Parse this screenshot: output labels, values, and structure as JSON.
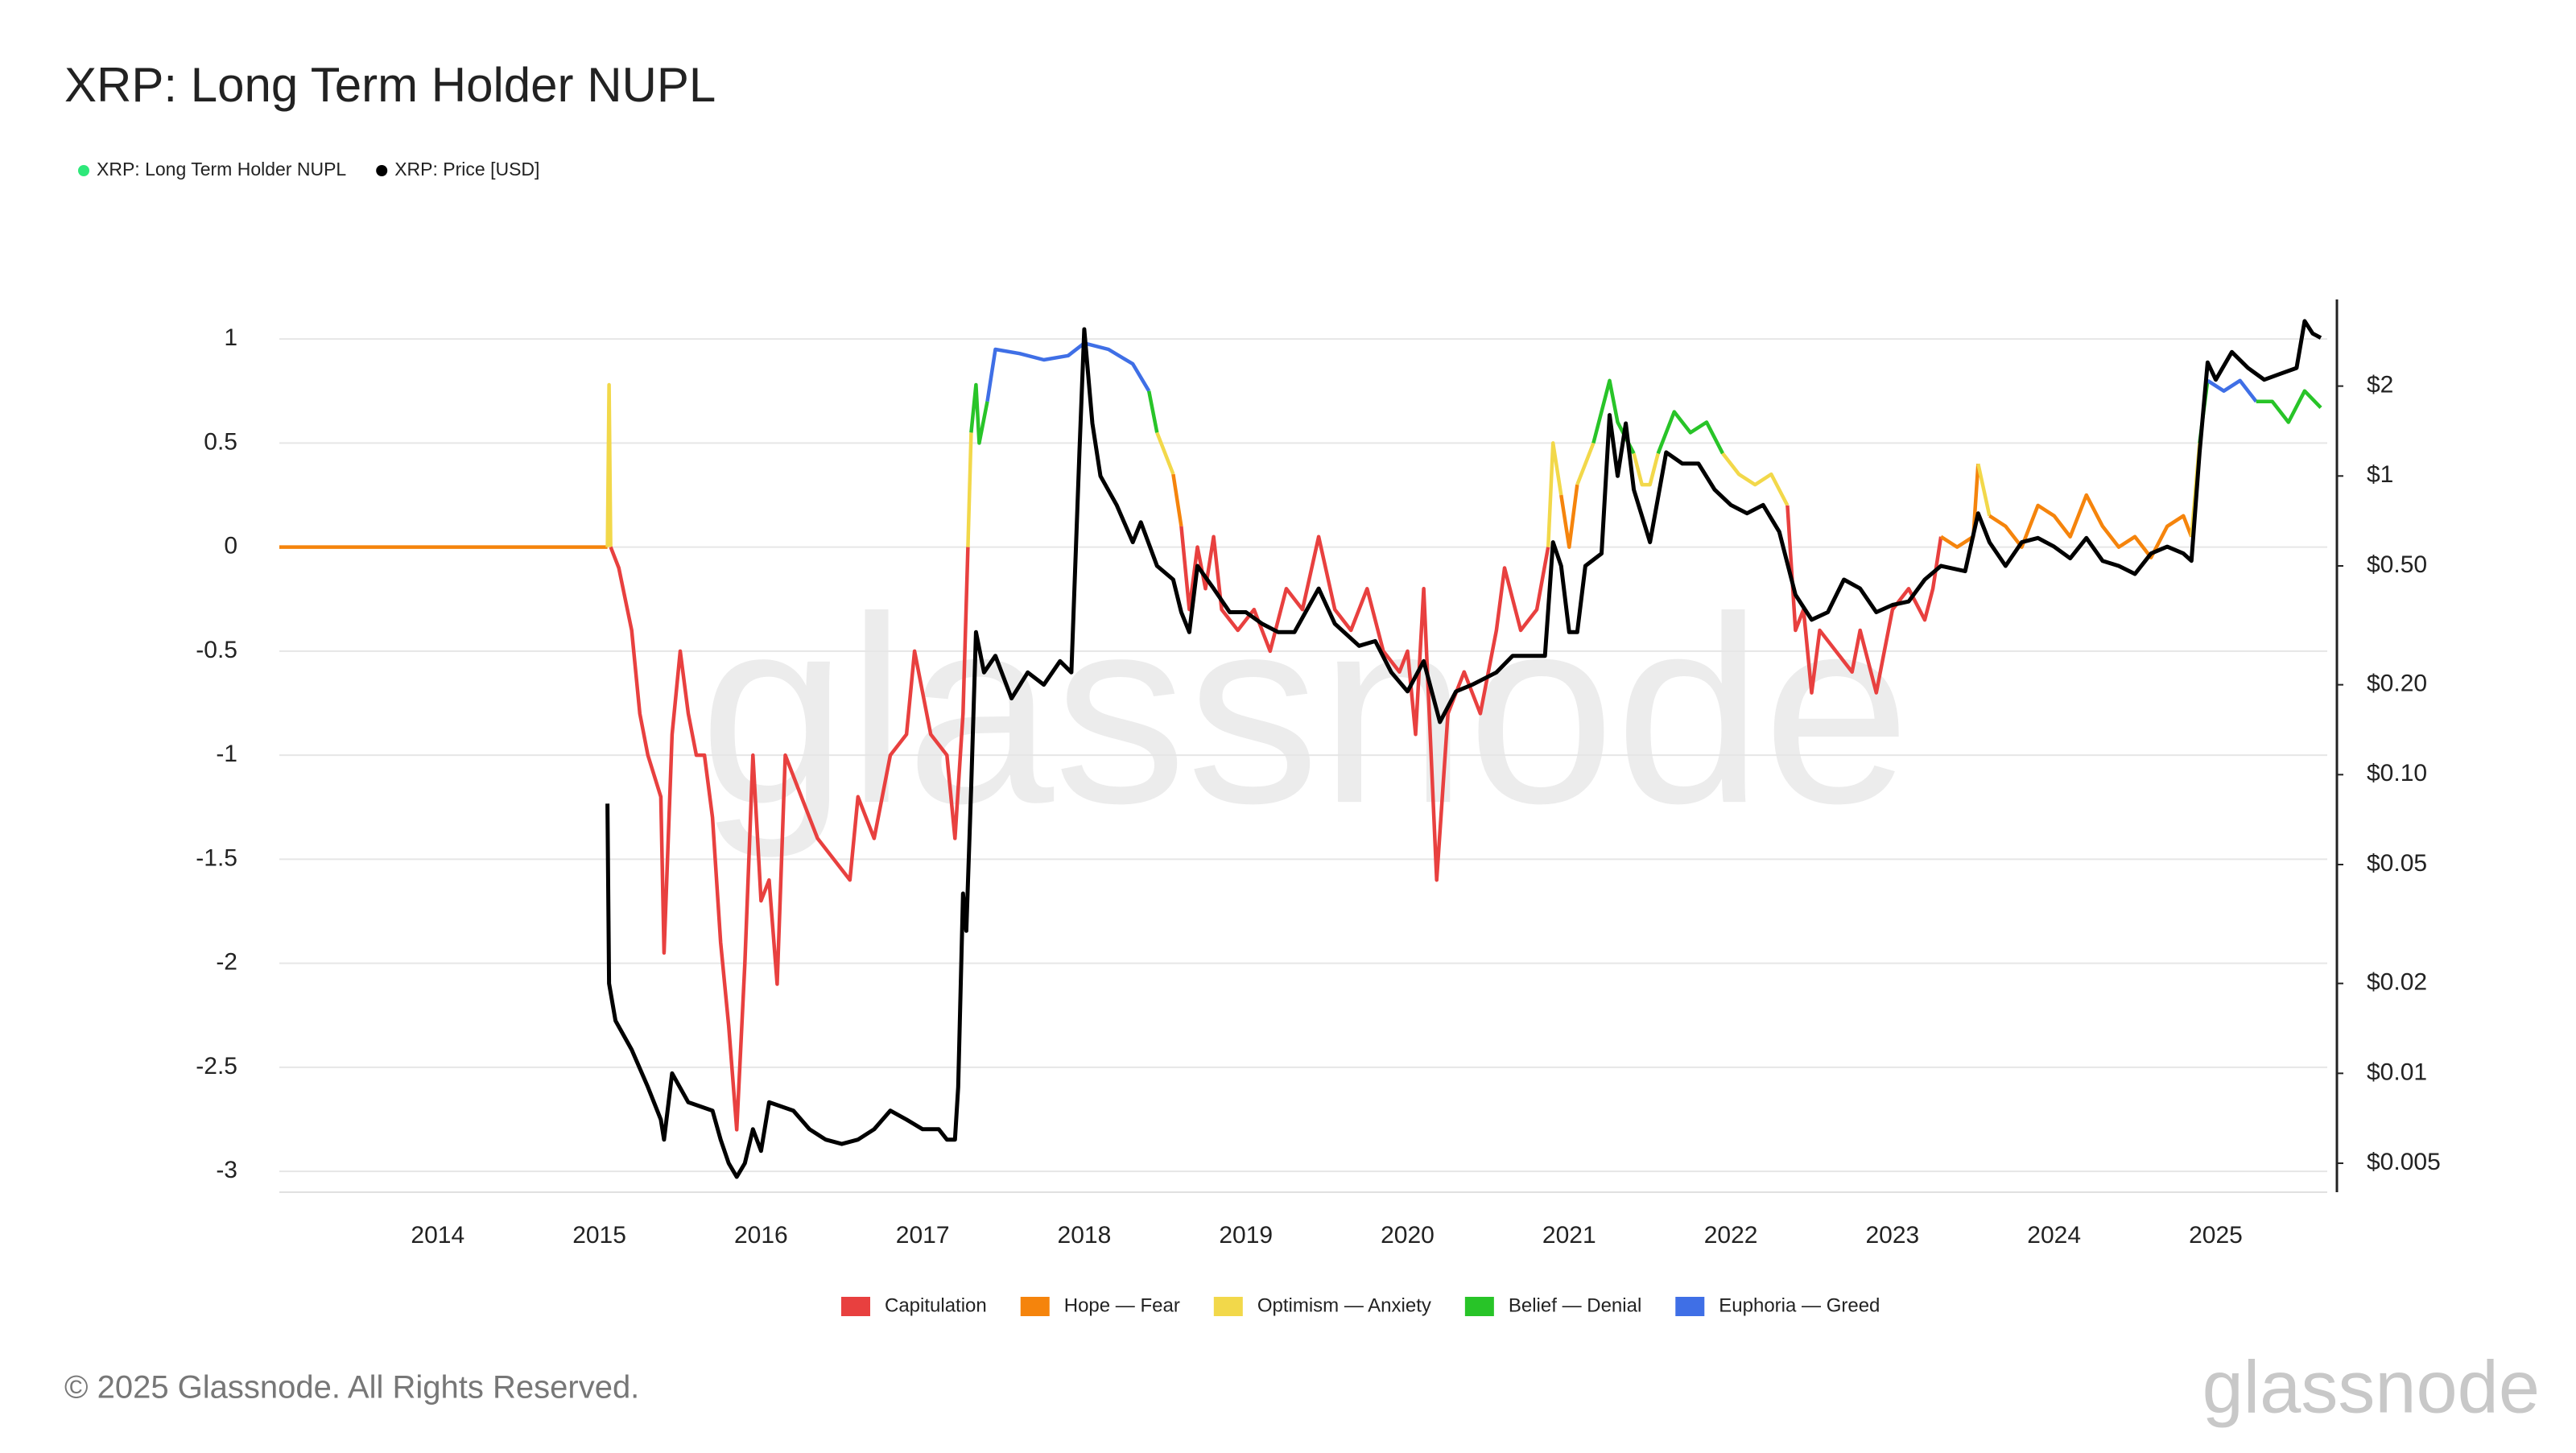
{
  "chart_data": {
    "type": "line",
    "title": "XRP: Long Term Holder NUPL",
    "watermark": "glassnode",
    "footer": "© 2025 Glassnode. All Rights Reserved.",
    "xlim": [
      2013.02,
      2025.69
    ],
    "xticks": [
      2014,
      2015,
      2016,
      2017,
      2018,
      2019,
      2020,
      2021,
      2022,
      2023,
      2024,
      2025
    ],
    "ylim": [
      -3.1,
      1.19
    ],
    "yticks": [
      1,
      0.5,
      0,
      -0.5,
      -1,
      -1.5,
      -2,
      -2.5,
      -3
    ],
    "y2lim": [
      0.004,
      3.9
    ],
    "y2scale": "log",
    "y2ticks": [
      {
        "value": 2,
        "label": "$2"
      },
      {
        "value": 1,
        "label": "$1"
      },
      {
        "value": 0.5,
        "label": "$0.50"
      },
      {
        "value": 0.2,
        "label": "$0.20"
      },
      {
        "value": 0.1,
        "label": "$0.10"
      },
      {
        "value": 0.05,
        "label": "$0.05"
      },
      {
        "value": 0.02,
        "label": "$0.02"
      },
      {
        "value": 0.01,
        "label": "$0.01"
      },
      {
        "value": 0.005,
        "label": "$0.005"
      }
    ],
    "grid": true,
    "zone_thresholds": [
      0,
      0.25,
      0.5,
      0.75
    ],
    "zones": [
      {
        "name": "Capitulation",
        "color": "#e8403f"
      },
      {
        "name": "Hope — Fear",
        "color": "#f5840c"
      },
      {
        "name": "Optimism — Anxiety",
        "color": "#f2d84a"
      },
      {
        "name": "Belief — Denial",
        "color": "#28c428"
      },
      {
        "name": "Euphoria — Greed",
        "color": "#3f6fe6"
      }
    ],
    "series": [
      {
        "name": "XRP: Long Term Holder NUPL",
        "color": "#2ee87a",
        "x": [
          2013.02,
          2015.05,
          2015.06,
          2015.07,
          2015.12,
          2015.2,
          2015.25,
          2015.3,
          2015.38,
          2015.4,
          2015.45,
          2015.5,
          2015.55,
          2015.6,
          2015.65,
          2015.7,
          2015.75,
          2015.8,
          2015.85,
          2015.9,
          2015.95,
          2016.0,
          2016.05,
          2016.1,
          2016.15,
          2016.25,
          2016.35,
          2016.45,
          2016.55,
          2016.6,
          2016.7,
          2016.8,
          2016.9,
          2016.95,
          2017.05,
          2017.15,
          2017.2,
          2017.25,
          2017.28,
          2017.3,
          2017.33,
          2017.35,
          2017.4,
          2017.45,
          2017.6,
          2017.75,
          2017.9,
          2018.0,
          2018.15,
          2018.3,
          2018.4,
          2018.45,
          2018.55,
          2018.6,
          2018.65,
          2018.7,
          2018.75,
          2018.8,
          2018.85,
          2018.95,
          2019.05,
          2019.15,
          2019.25,
          2019.35,
          2019.45,
          2019.55,
          2019.65,
          2019.75,
          2019.85,
          2019.95,
          2020.0,
          2020.05,
          2020.1,
          2020.18,
          2020.25,
          2020.35,
          2020.45,
          2020.55,
          2020.6,
          2020.7,
          2020.8,
          2020.87,
          2020.9,
          2020.95,
          2021.0,
          2021.05,
          2021.1,
          2021.15,
          2021.25,
          2021.3,
          2021.4,
          2021.45,
          2021.5,
          2021.55,
          2021.65,
          2021.75,
          2021.85,
          2021.95,
          2022.05,
          2022.15,
          2022.25,
          2022.35,
          2022.4,
          2022.45,
          2022.5,
          2022.55,
          2022.65,
          2022.75,
          2022.8,
          2022.9,
          2022.95,
          2023.0,
          2023.1,
          2023.2,
          2023.25,
          2023.3,
          2023.4,
          2023.5,
          2023.53,
          2023.6,
          2023.7,
          2023.8,
          2023.9,
          2024.0,
          2024.1,
          2024.2,
          2024.3,
          2024.4,
          2024.5,
          2024.6,
          2024.7,
          2024.8,
          2024.85,
          2024.9,
          2024.95,
          2025.05,
          2025.15,
          2025.25,
          2025.35,
          2025.45,
          2025.55,
          2025.65
        ],
        "values": [
          0,
          0,
          0.78,
          0.0,
          -0.1,
          -0.4,
          -0.8,
          -1.0,
          -1.2,
          -1.95,
          -0.9,
          -0.5,
          -0.8,
          -1.0,
          -1.0,
          -1.3,
          -1.9,
          -2.3,
          -2.8,
          -2.0,
          -1.0,
          -1.7,
          -1.6,
          -2.1,
          -1.0,
          -1.2,
          -1.4,
          -1.5,
          -1.6,
          -1.2,
          -1.4,
          -1.0,
          -0.9,
          -0.5,
          -0.9,
          -1.0,
          -1.4,
          -0.8,
          0.0,
          0.55,
          0.78,
          0.5,
          0.7,
          0.95,
          0.93,
          0.9,
          0.92,
          0.98,
          0.95,
          0.88,
          0.75,
          0.55,
          0.35,
          0.1,
          -0.3,
          0.0,
          -0.2,
          0.05,
          -0.3,
          -0.4,
          -0.3,
          -0.5,
          -0.2,
          -0.3,
          0.05,
          -0.3,
          -0.4,
          -0.2,
          -0.5,
          -0.6,
          -0.5,
          -0.9,
          -0.2,
          -1.6,
          -0.8,
          -0.6,
          -0.8,
          -0.4,
          -0.1,
          -0.4,
          -0.3,
          0.0,
          0.5,
          0.25,
          0.0,
          0.3,
          0.4,
          0.5,
          0.8,
          0.6,
          0.45,
          0.3,
          0.3,
          0.45,
          0.65,
          0.55,
          0.6,
          0.45,
          0.35,
          0.3,
          0.35,
          0.2,
          -0.4,
          -0.3,
          -0.7,
          -0.4,
          -0.5,
          -0.6,
          -0.4,
          -0.7,
          -0.5,
          -0.3,
          -0.2,
          -0.35,
          -0.2,
          0.05,
          0.0,
          0.05,
          0.4,
          0.15,
          0.1,
          0.0,
          0.2,
          0.15,
          0.05,
          0.25,
          0.1,
          0.0,
          0.05,
          -0.05,
          0.1,
          0.15,
          0.05,
          0.5,
          0.8,
          0.75,
          0.8,
          0.7,
          0.7,
          0.6,
          0.75,
          0.67
        ]
      },
      {
        "name": "XRP: Price [USD]",
        "color": "#000000",
        "axis": "y2",
        "x": [
          2015.05,
          2015.06,
          2015.1,
          2015.2,
          2015.3,
          2015.38,
          2015.4,
          2015.45,
          2015.55,
          2015.7,
          2015.75,
          2015.8,
          2015.85,
          2015.9,
          2015.95,
          2016.0,
          2016.05,
          2016.2,
          2016.3,
          2016.4,
          2016.5,
          2016.6,
          2016.7,
          2016.8,
          2016.9,
          2017.0,
          2017.1,
          2017.15,
          2017.2,
          2017.22,
          2017.25,
          2017.27,
          2017.3,
          2017.33,
          2017.38,
          2017.45,
          2017.55,
          2017.65,
          2017.75,
          2017.85,
          2017.92,
          2017.97,
          2018.0,
          2018.05,
          2018.1,
          2018.2,
          2018.3,
          2018.35,
          2018.45,
          2018.55,
          2018.6,
          2018.65,
          2018.7,
          2018.8,
          2018.9,
          2019.0,
          2019.1,
          2019.2,
          2019.3,
          2019.45,
          2019.55,
          2019.7,
          2019.8,
          2019.9,
          2020.0,
          2020.1,
          2020.2,
          2020.3,
          2020.4,
          2020.55,
          2020.65,
          2020.75,
          2020.85,
          2020.9,
          2020.95,
          2021.0,
          2021.05,
          2021.1,
          2021.2,
          2021.25,
          2021.3,
          2021.35,
          2021.4,
          2021.5,
          2021.6,
          2021.7,
          2021.8,
          2021.9,
          2022.0,
          2022.1,
          2022.2,
          2022.3,
          2022.4,
          2022.5,
          2022.6,
          2022.7,
          2022.8,
          2022.9,
          2023.0,
          2023.1,
          2023.2,
          2023.3,
          2023.45,
          2023.53,
          2023.6,
          2023.7,
          2023.8,
          2023.9,
          2024.0,
          2024.1,
          2024.2,
          2024.3,
          2024.4,
          2024.5,
          2024.6,
          2024.7,
          2024.8,
          2024.85,
          2024.9,
          2024.95,
          2025.0,
          2025.1,
          2025.2,
          2025.3,
          2025.4,
          2025.5,
          2025.55,
          2025.6,
          2025.65
        ],
        "values": [
          0.08,
          0.02,
          0.015,
          0.012,
          0.009,
          0.007,
          0.006,
          0.01,
          0.008,
          0.0075,
          0.006,
          0.005,
          0.0045,
          0.005,
          0.0065,
          0.0055,
          0.008,
          0.0075,
          0.0065,
          0.006,
          0.0058,
          0.006,
          0.0065,
          0.0075,
          0.007,
          0.0065,
          0.0065,
          0.006,
          0.006,
          0.009,
          0.04,
          0.03,
          0.09,
          0.3,
          0.22,
          0.25,
          0.18,
          0.22,
          0.2,
          0.24,
          0.22,
          1.2,
          3.1,
          1.5,
          1.0,
          0.8,
          0.6,
          0.7,
          0.5,
          0.45,
          0.35,
          0.3,
          0.5,
          0.42,
          0.35,
          0.35,
          0.32,
          0.3,
          0.3,
          0.42,
          0.32,
          0.27,
          0.28,
          0.22,
          0.19,
          0.24,
          0.15,
          0.19,
          0.2,
          0.22,
          0.25,
          0.25,
          0.25,
          0.6,
          0.5,
          0.3,
          0.3,
          0.5,
          0.55,
          1.6,
          1.0,
          1.5,
          0.9,
          0.6,
          1.2,
          1.1,
          1.1,
          0.9,
          0.8,
          0.75,
          0.8,
          0.65,
          0.4,
          0.33,
          0.35,
          0.45,
          0.42,
          0.35,
          0.37,
          0.38,
          0.45,
          0.5,
          0.48,
          0.75,
          0.6,
          0.5,
          0.6,
          0.62,
          0.58,
          0.53,
          0.62,
          0.52,
          0.5,
          0.47,
          0.55,
          0.58,
          0.55,
          0.52,
          1.2,
          2.4,
          2.1,
          2.6,
          2.3,
          2.1,
          2.2,
          2.3,
          3.3,
          3.0,
          2.9
        ]
      }
    ]
  }
}
